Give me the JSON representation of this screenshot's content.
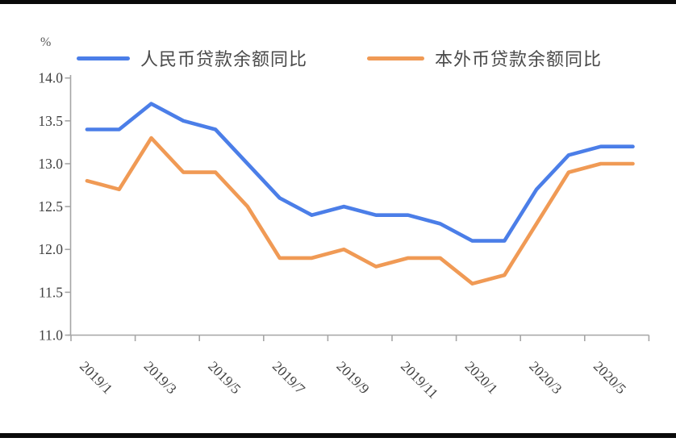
{
  "frame": {
    "top_border": true,
    "bottom_border": true,
    "border_color": "#0a0a0a",
    "background": "#ffffff"
  },
  "chart_data": {
    "type": "line",
    "title": "",
    "unit_label": "%",
    "xlabel": "",
    "ylabel": "%",
    "ylim": [
      11.0,
      14.0
    ],
    "y_tick_step": 0.5,
    "y_tick_labels": [
      "14.0",
      "13.5",
      "13.0",
      "12.5",
      "12.0",
      "11.5",
      "11.0"
    ],
    "grid": "off",
    "legend_position": "top",
    "axis_color": "#a6a6a6",
    "tick_label_color": "#404040",
    "categories": [
      "2019/1",
      "2019/2",
      "2019/3",
      "2019/4",
      "2019/5",
      "2019/6",
      "2019/7",
      "2019/8",
      "2019/9",
      "2019/10",
      "2019/11",
      "2019/12",
      "2020/1",
      "2020/2",
      "2020/3",
      "2020/4",
      "2020/5",
      "2020/6"
    ],
    "x_tick_labels": [
      "2019/1",
      "2019/3",
      "2019/5",
      "2019/7",
      "2019/9",
      "2019/11",
      "2020/1",
      "2020/3",
      "2020/5"
    ],
    "x_label_rotation_deg": 45,
    "series": [
      {
        "name": "人民币贷款余额同比",
        "color": "#4b7ee8",
        "values": [
          13.4,
          13.4,
          13.7,
          13.5,
          13.4,
          13.0,
          12.6,
          12.4,
          12.5,
          12.4,
          12.4,
          12.3,
          12.1,
          12.1,
          12.7,
          13.1,
          13.2,
          13.2
        ]
      },
      {
        "name": "本外币贷款余额同比",
        "color": "#f09a55",
        "values": [
          12.8,
          12.7,
          13.3,
          12.9,
          12.9,
          12.5,
          11.9,
          11.9,
          12.0,
          11.8,
          11.9,
          11.9,
          11.6,
          11.7,
          12.3,
          12.9,
          13.0,
          13.0
        ]
      }
    ]
  }
}
